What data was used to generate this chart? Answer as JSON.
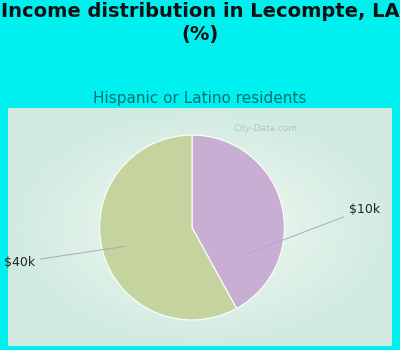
{
  "title": "Income distribution in Lecompte, LA\n(%)",
  "subtitle": "Hispanic or Latino residents",
  "slices": [
    {
      "label": "$40k",
      "value": 58,
      "color": "#c5d49e"
    },
    {
      "label": "$10k",
      "value": 42,
      "color": "#c9aed4"
    }
  ],
  "startangle": 90,
  "background_color": "#00efef",
  "chart_bg_color": "#e8f5ee",
  "title_fontsize": 14,
  "subtitle_fontsize": 11,
  "subtitle_color": "#007070",
  "label_fontsize": 9,
  "watermark": "City-Data.com"
}
